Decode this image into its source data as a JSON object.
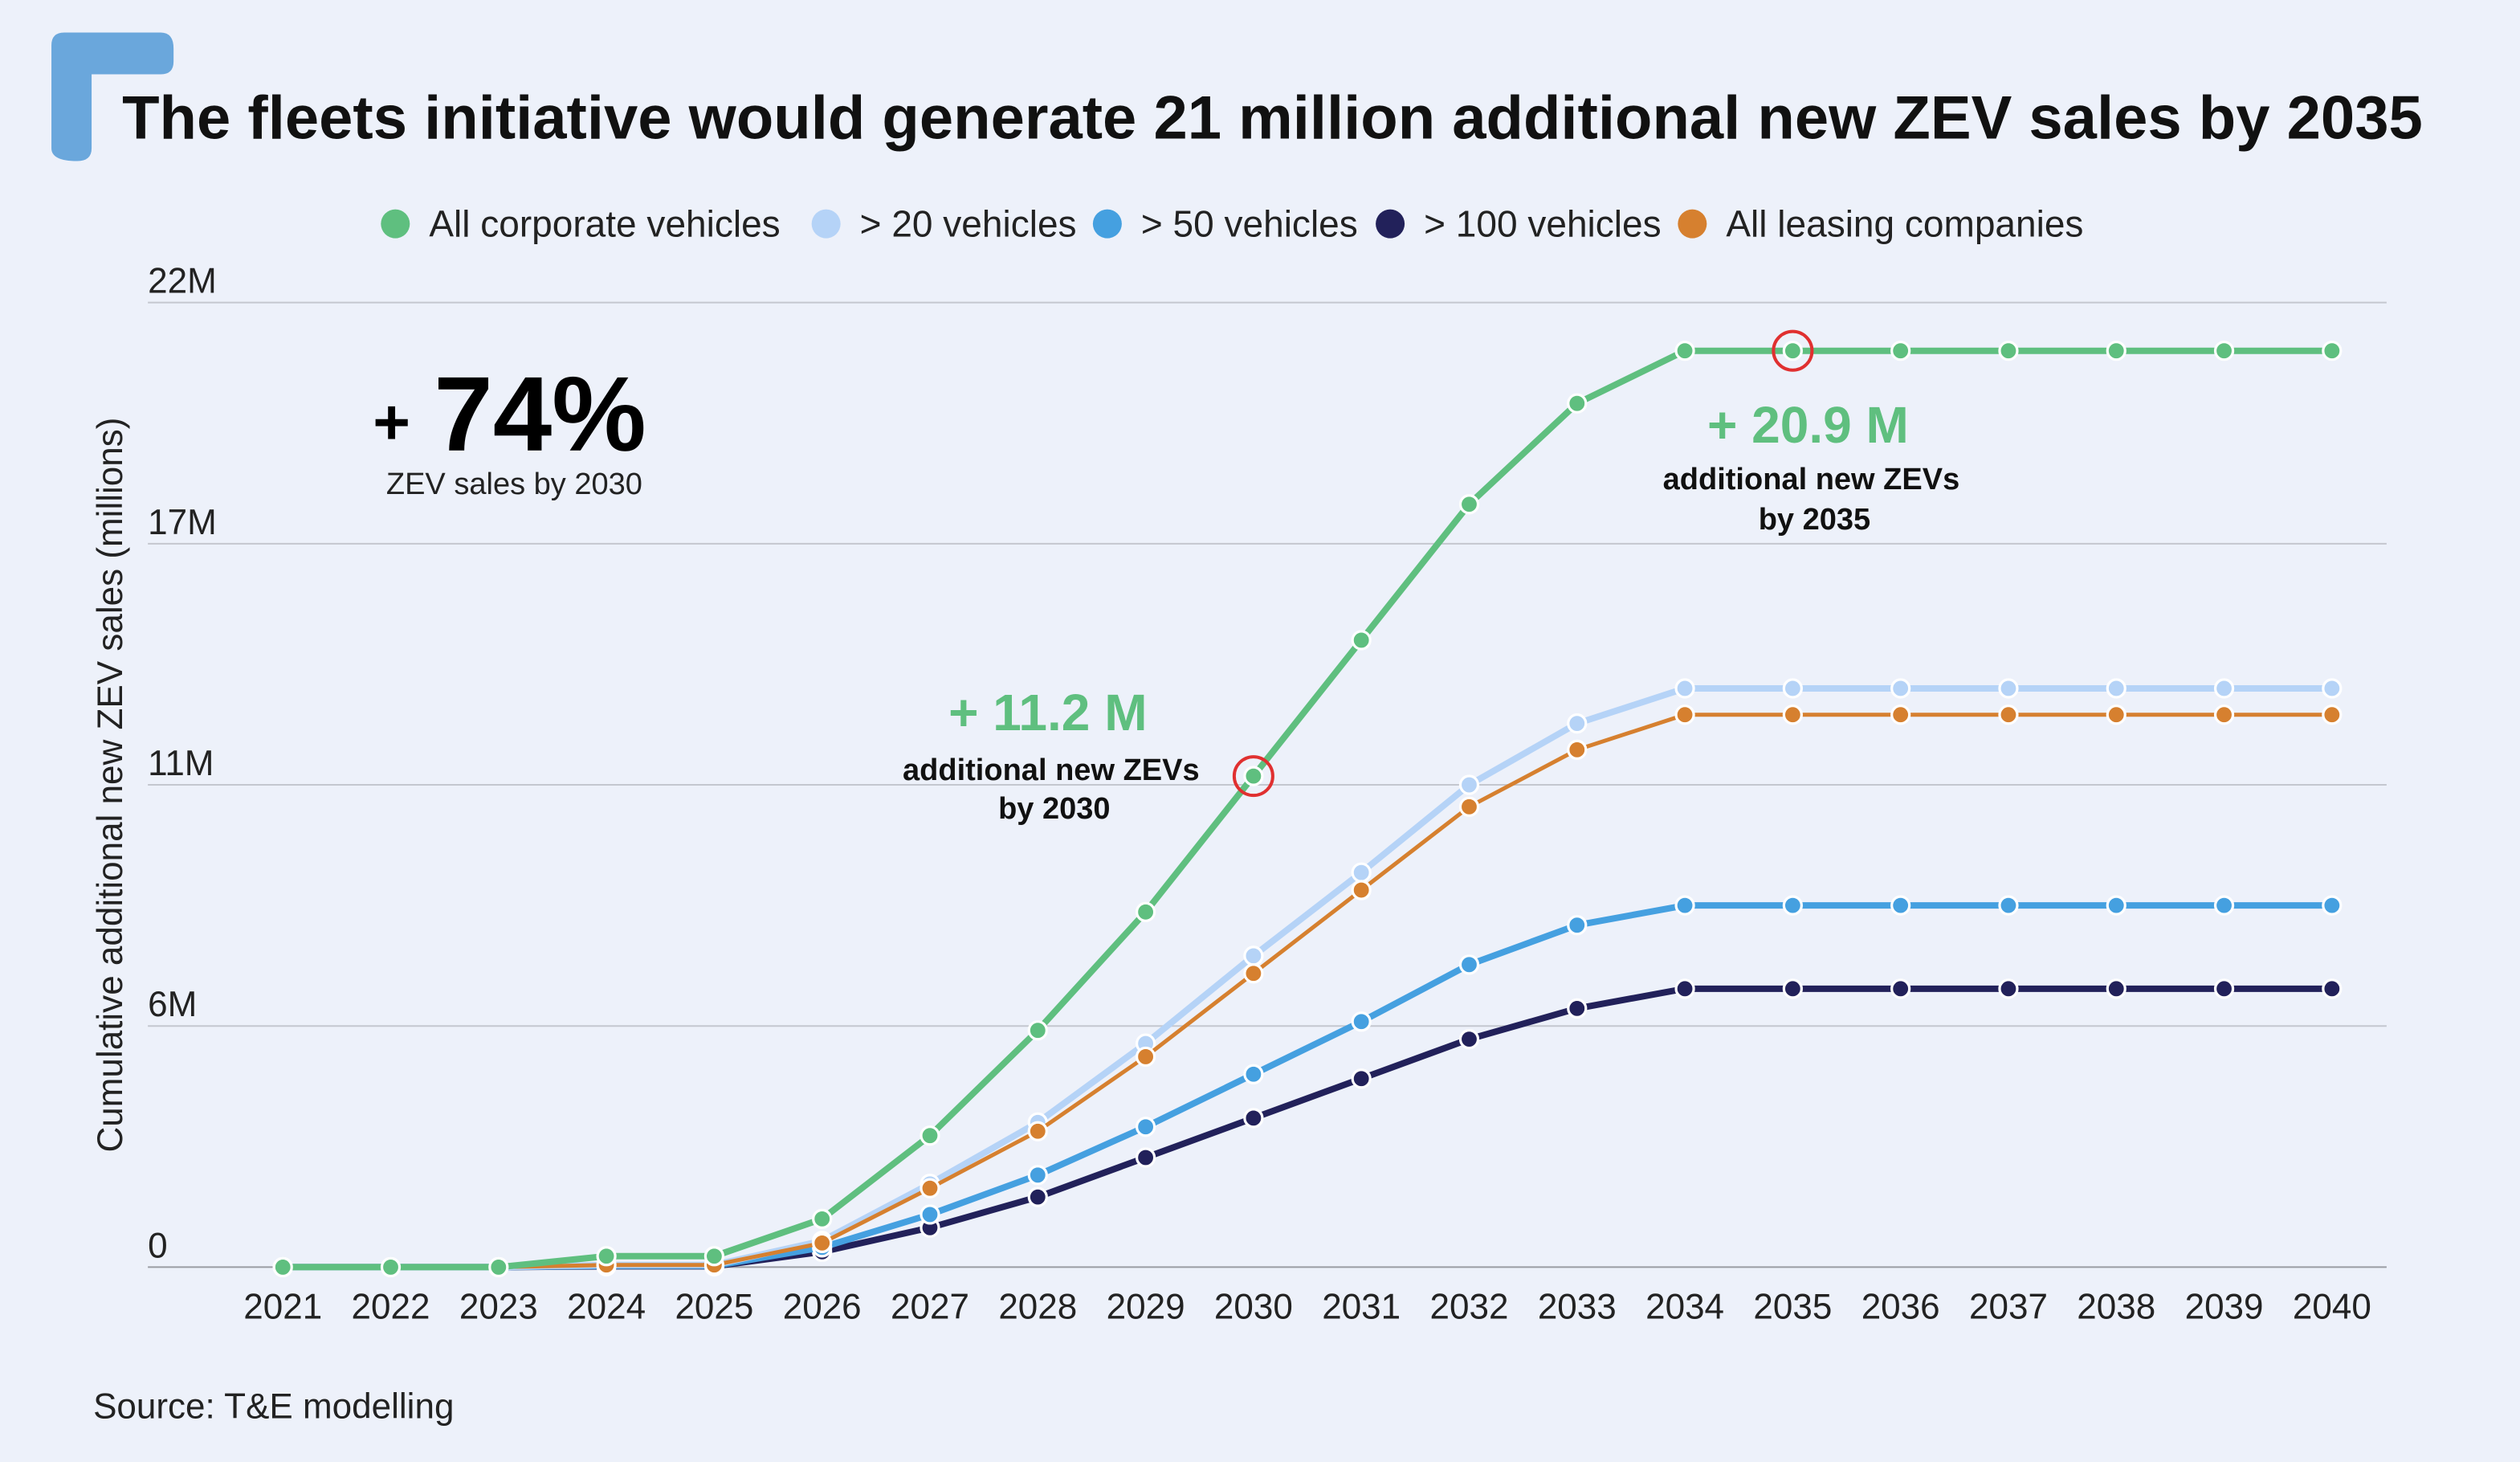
{
  "chart_data": {
    "type": "line",
    "title": "The fleets initiative would generate 21 million additional new ZEV sales by 2035",
    "ylabel": "Cumulative additional new ZEV sales (millions)",
    "xlabel": "",
    "ylim": [
      0,
      22
    ],
    "y_ticks": [
      "0",
      "6M",
      "11M",
      "17M",
      "22M"
    ],
    "y_tick_values": [
      0,
      5.5,
      11,
      16.5,
      22
    ],
    "grid": true,
    "legend_position": "top",
    "x": [
      2021,
      2022,
      2023,
      2024,
      2025,
      2026,
      2027,
      2028,
      2029,
      2030,
      2031,
      2032,
      2033,
      2034,
      2035,
      2036,
      2037,
      2038,
      2039,
      2040
    ],
    "series": [
      {
        "name": "All corporate vehicles",
        "color": "#5fbf7f",
        "values": [
          0,
          0,
          0,
          0.25,
          0.25,
          1.1,
          3.0,
          5.4,
          8.1,
          11.2,
          14.3,
          17.4,
          19.7,
          20.9,
          20.9,
          20.9,
          20.9,
          20.9,
          20.9,
          20.9
        ]
      },
      {
        "name": "> 20 vehicles",
        "color": "#b5d3f7",
        "values": [
          0,
          0,
          0,
          0.05,
          0.05,
          0.6,
          1.9,
          3.3,
          5.1,
          7.1,
          9.0,
          11.0,
          12.4,
          13.2,
          13.2,
          13.2,
          13.2,
          13.2,
          13.2,
          13.2
        ]
      },
      {
        "name": "> 50 vehicles",
        "color": "#45a0e0",
        "values": [
          0,
          0,
          0,
          0.03,
          0.03,
          0.45,
          1.2,
          2.1,
          3.2,
          4.4,
          5.6,
          6.9,
          7.8,
          8.25,
          8.25,
          8.25,
          8.25,
          8.25,
          8.25,
          8.25
        ]
      },
      {
        "name": "> 100 vehicles",
        "color": "#22215a",
        "values": [
          0,
          0,
          0,
          0.02,
          0.02,
          0.35,
          0.9,
          1.6,
          2.5,
          3.4,
          4.3,
          5.2,
          5.9,
          6.35,
          6.35,
          6.35,
          6.35,
          6.35,
          6.35,
          6.35
        ]
      },
      {
        "name": "All leasing companies",
        "color": "#d6802f",
        "values": [
          0,
          0,
          0,
          0.05,
          0.05,
          0.55,
          1.8,
          3.1,
          4.8,
          6.7,
          8.6,
          10.5,
          11.8,
          12.6,
          12.6,
          12.6,
          12.6,
          12.6,
          12.6,
          12.6
        ]
      }
    ],
    "highlights": [
      {
        "x": 2030,
        "y": 11.2,
        "color": "#e03030"
      },
      {
        "x": 2035,
        "y": 20.9,
        "color": "#e03030"
      }
    ],
    "annotations": {
      "pct_plus": "+",
      "pct_value": "74%",
      "pct_label": "ZEV sales by 2030",
      "a2030_value": "+ 11.2 M",
      "a2030_line1": "additional new ZEVs",
      "a2030_line2": "by 2030",
      "a2035_value": "+ 20.9 M",
      "a2035_line1": "additional new ZEVs",
      "a2035_line2": "by 2035"
    },
    "source": "Source: T&E modelling"
  },
  "colors": {
    "background": "#edf1fa",
    "logo": "#6aa7dc"
  }
}
